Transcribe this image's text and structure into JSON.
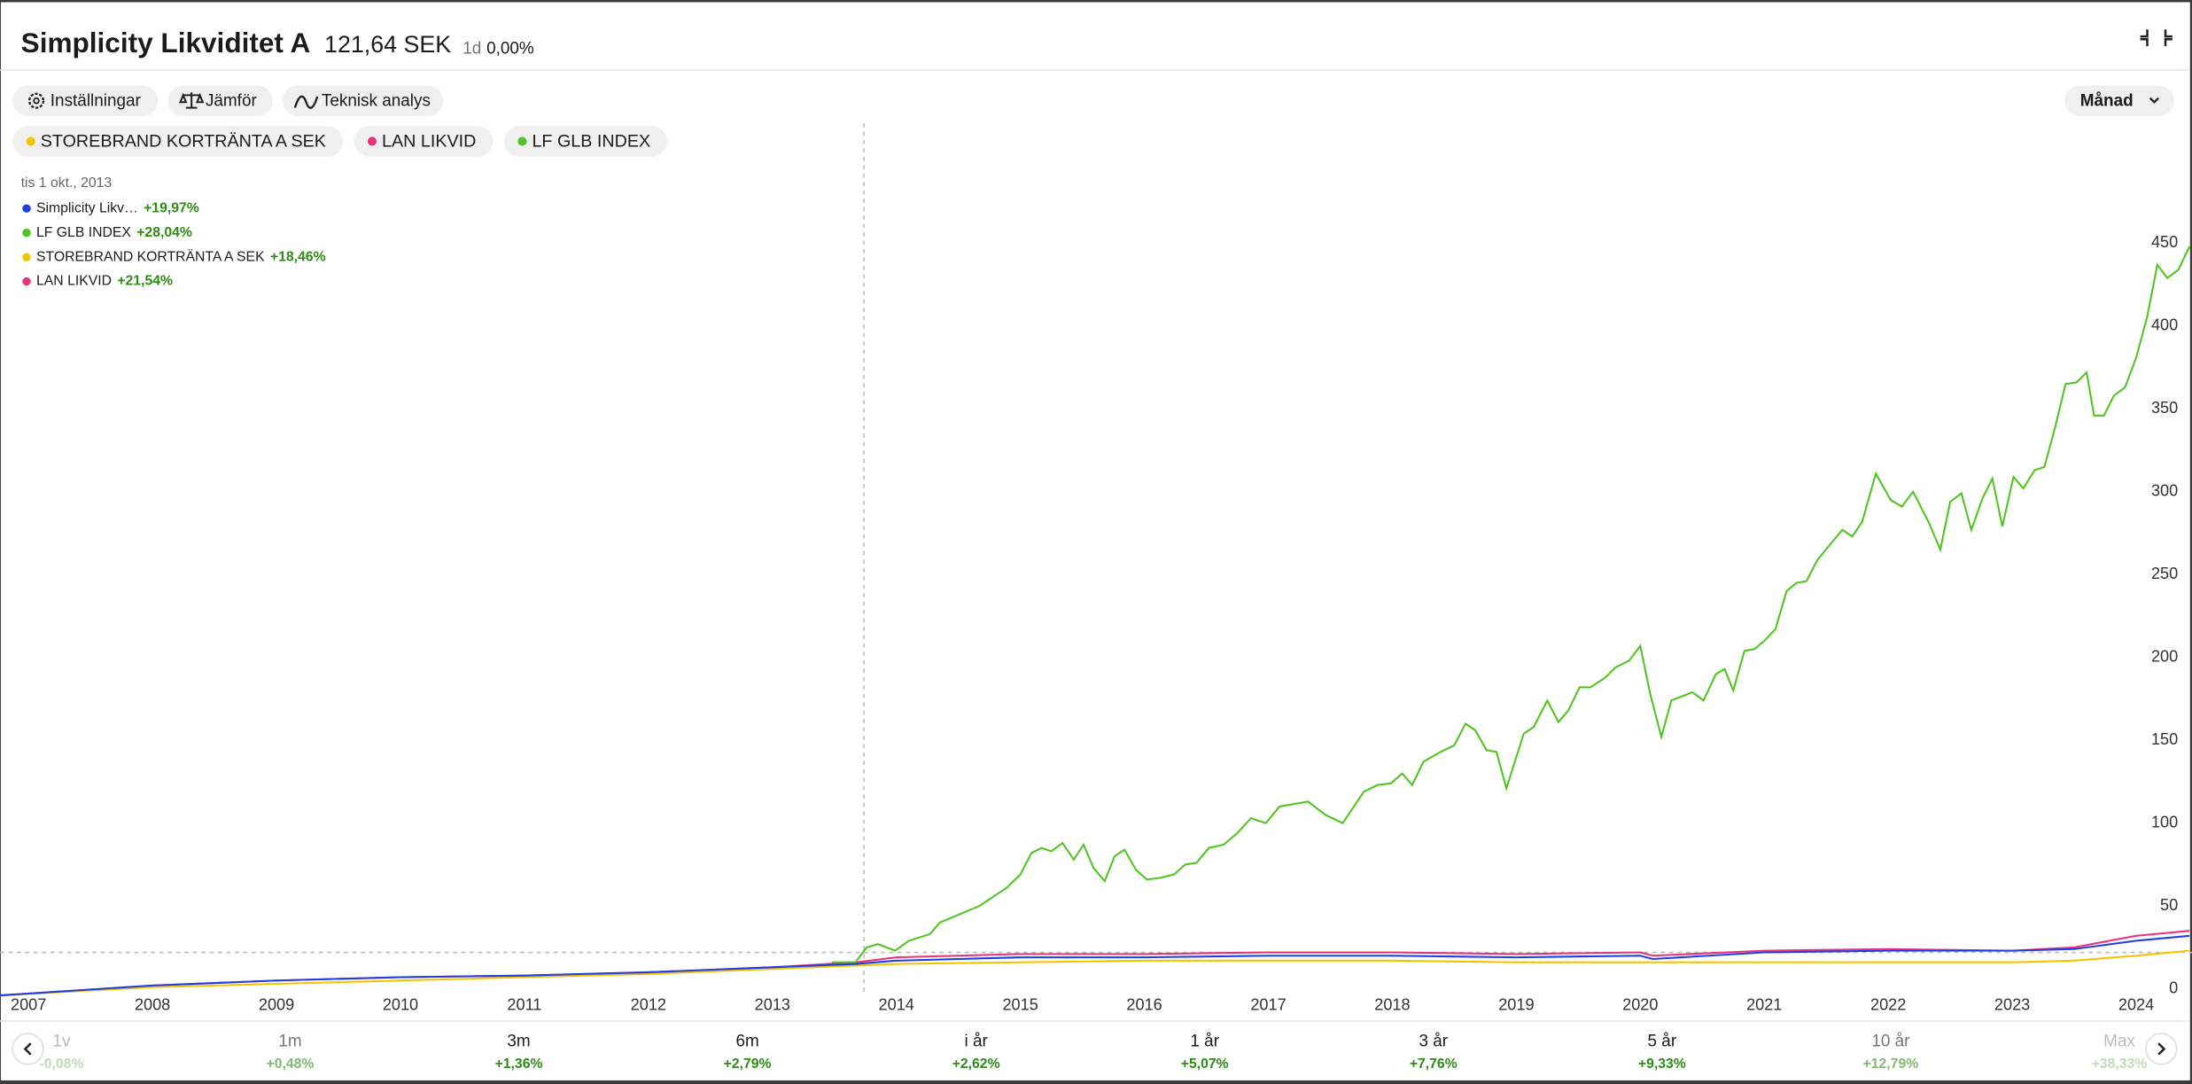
{
  "header": {
    "title": "Simplicity Likviditet A",
    "price": "121,64 SEK",
    "period": "1d",
    "change": "0,00%"
  },
  "toolbar": {
    "buttons": [
      "Inställningar",
      "Jämför",
      "Teknisk analys"
    ],
    "interval": "Månad"
  },
  "chart_data": {
    "type": "line",
    "tooltip": {
      "date": "tis 1 okt., 2013",
      "changes": [
        "+19,97%",
        "+28,04%",
        "+18,46%",
        "+21,54%"
      ]
    },
    "xlim": [
      2006.77,
      2024.45
    ],
    "xticks": [
      2007,
      2008,
      2009,
      2010,
      2011,
      2012,
      2013,
      2014,
      2015,
      2016,
      2017,
      2018,
      2019,
      2020,
      2021,
      2022,
      2023,
      2024
    ],
    "ylim": [
      -20,
      520
    ],
    "yticks": [
      0,
      50,
      100,
      150,
      200,
      250,
      300,
      350,
      400,
      450
    ],
    "grid": false,
    "series": [
      {
        "name": "Simplicity Likv…",
        "color": "#1f3fe6",
        "x": [
          2006.77,
          2008,
          2009,
          2010,
          2011,
          2012,
          2013,
          2013.67,
          2014,
          2015,
          2016,
          2017,
          2018,
          2019,
          2020,
          2020.1,
          2021,
          2022,
          2023,
          2023.5,
          2024,
          2024.43
        ],
        "values": [
          -4,
          2,
          5,
          7,
          8,
          10,
          13,
          15,
          17,
          19,
          19,
          20,
          20,
          19,
          20,
          18,
          22,
          23,
          23,
          24,
          29,
          32
        ]
      },
      {
        "name": "LF GLB INDEX",
        "color": "#4fc41f",
        "x": [
          2013.48,
          2013.67,
          2013.76,
          2013.85,
          2013.99,
          2014.1,
          2014.27,
          2014.35,
          2014.67,
          2014.89,
          2015.0,
          2015.09,
          2015.17,
          2015.25,
          2015.34,
          2015.43,
          2015.51,
          2015.59,
          2015.68,
          2015.76,
          2015.84,
          2015.93,
          2016.02,
          2016.13,
          2016.24,
          2016.33,
          2016.42,
          2016.52,
          2016.64,
          2016.75,
          2016.86,
          2016.98,
          2017.09,
          2017.32,
          2017.46,
          2017.6,
          2017.77,
          2017.88,
          2017.99,
          2018.08,
          2018.16,
          2018.25,
          2018.39,
          2018.5,
          2018.59,
          2018.67,
          2018.76,
          2018.84,
          2018.92,
          2019.06,
          2019.14,
          2019.25,
          2019.34,
          2019.42,
          2019.51,
          2019.6,
          2019.72,
          2019.8,
          2019.91,
          2020.0,
          2020.08,
          2020.17,
          2020.25,
          2020.42,
          2020.51,
          2020.61,
          2020.68,
          2020.75,
          2020.84,
          2020.92,
          2021.0,
          2021.09,
          2021.18,
          2021.26,
          2021.34,
          2021.43,
          2021.54,
          2021.63,
          2021.71,
          2021.79,
          2021.9,
          2022.02,
          2022.11,
          2022.2,
          2022.33,
          2022.42,
          2022.5,
          2022.59,
          2022.67,
          2022.76,
          2022.84,
          2022.92,
          2023.01,
          2023.09,
          2023.18,
          2023.26,
          2023.35,
          2023.43,
          2023.52,
          2023.6,
          2023.66,
          2023.74,
          2023.82,
          2023.91,
          2024.0,
          2024.09,
          2024.17,
          2024.25,
          2024.34,
          2024.43
        ],
        "values": [
          16,
          16,
          25,
          27,
          23,
          29,
          33,
          40,
          50,
          61,
          69,
          82,
          85,
          83,
          88,
          78,
          87,
          73,
          65,
          80,
          84,
          72,
          66,
          67,
          69,
          75,
          76,
          85,
          87,
          94,
          103,
          100,
          110,
          113,
          105,
          100,
          119,
          123,
          124,
          130,
          123,
          137,
          143,
          147,
          160,
          156,
          144,
          143,
          121,
          154,
          158,
          174,
          161,
          168,
          182,
          182,
          188,
          194,
          198,
          207,
          178,
          152,
          174,
          179,
          174,
          190,
          193,
          180,
          204,
          205,
          210,
          217,
          240,
          245,
          246,
          259,
          269,
          277,
          273,
          282,
          311,
          295,
          291,
          300,
          281,
          265,
          294,
          299,
          277,
          296,
          308,
          279,
          309,
          302,
          313,
          315,
          340,
          365,
          366,
          372,
          346,
          346,
          358,
          363,
          381,
          406,
          437,
          429,
          434,
          448
        ]
      },
      {
        "name": "STOREBRAND KORTRÄNTA A SEK",
        "color": "#f5c400",
        "x": [
          2006.77,
          2008,
          2009,
          2010,
          2011,
          2012,
          2013,
          2014,
          2015,
          2016,
          2017,
          2018,
          2019,
          2020,
          2021,
          2022,
          2023,
          2023.5,
          2024,
          2024.43
        ],
        "values": [
          -4,
          1,
          3,
          5,
          7,
          9,
          12,
          15,
          16,
          17,
          17,
          17,
          16,
          16,
          16,
          16,
          16,
          17,
          20,
          23
        ]
      },
      {
        "name": "LAN LIKVID",
        "color": "#e8327c",
        "x": [
          2006.77,
          2008,
          2009,
          2010,
          2011,
          2012,
          2013,
          2013.67,
          2014,
          2015,
          2016,
          2017,
          2018,
          2019,
          2020,
          2020.1,
          2021,
          2022,
          2023,
          2023.5,
          2024,
          2024.43
        ],
        "values": [
          -4,
          2,
          5,
          7,
          8,
          10,
          13,
          16,
          19,
          21,
          21,
          22,
          22,
          21,
          22,
          20,
          23,
          24,
          23,
          25,
          32,
          35
        ]
      }
    ]
  },
  "periods": [
    {
      "label": "1v",
      "change": "-0,08%"
    },
    {
      "label": "1m",
      "change": "+0,48%"
    },
    {
      "label": "3m",
      "change": "+1,36%"
    },
    {
      "label": "6m",
      "change": "+2,79%"
    },
    {
      "label": "i år",
      "change": "+2,62%"
    },
    {
      "label": "1 år",
      "change": "+5,07%"
    },
    {
      "label": "3 år",
      "change": "+7,76%"
    },
    {
      "label": "5 år",
      "change": "+9,33%"
    },
    {
      "label": "10 år",
      "change": "+12,79%"
    },
    {
      "label": "Max",
      "change": "+38,33%"
    }
  ]
}
